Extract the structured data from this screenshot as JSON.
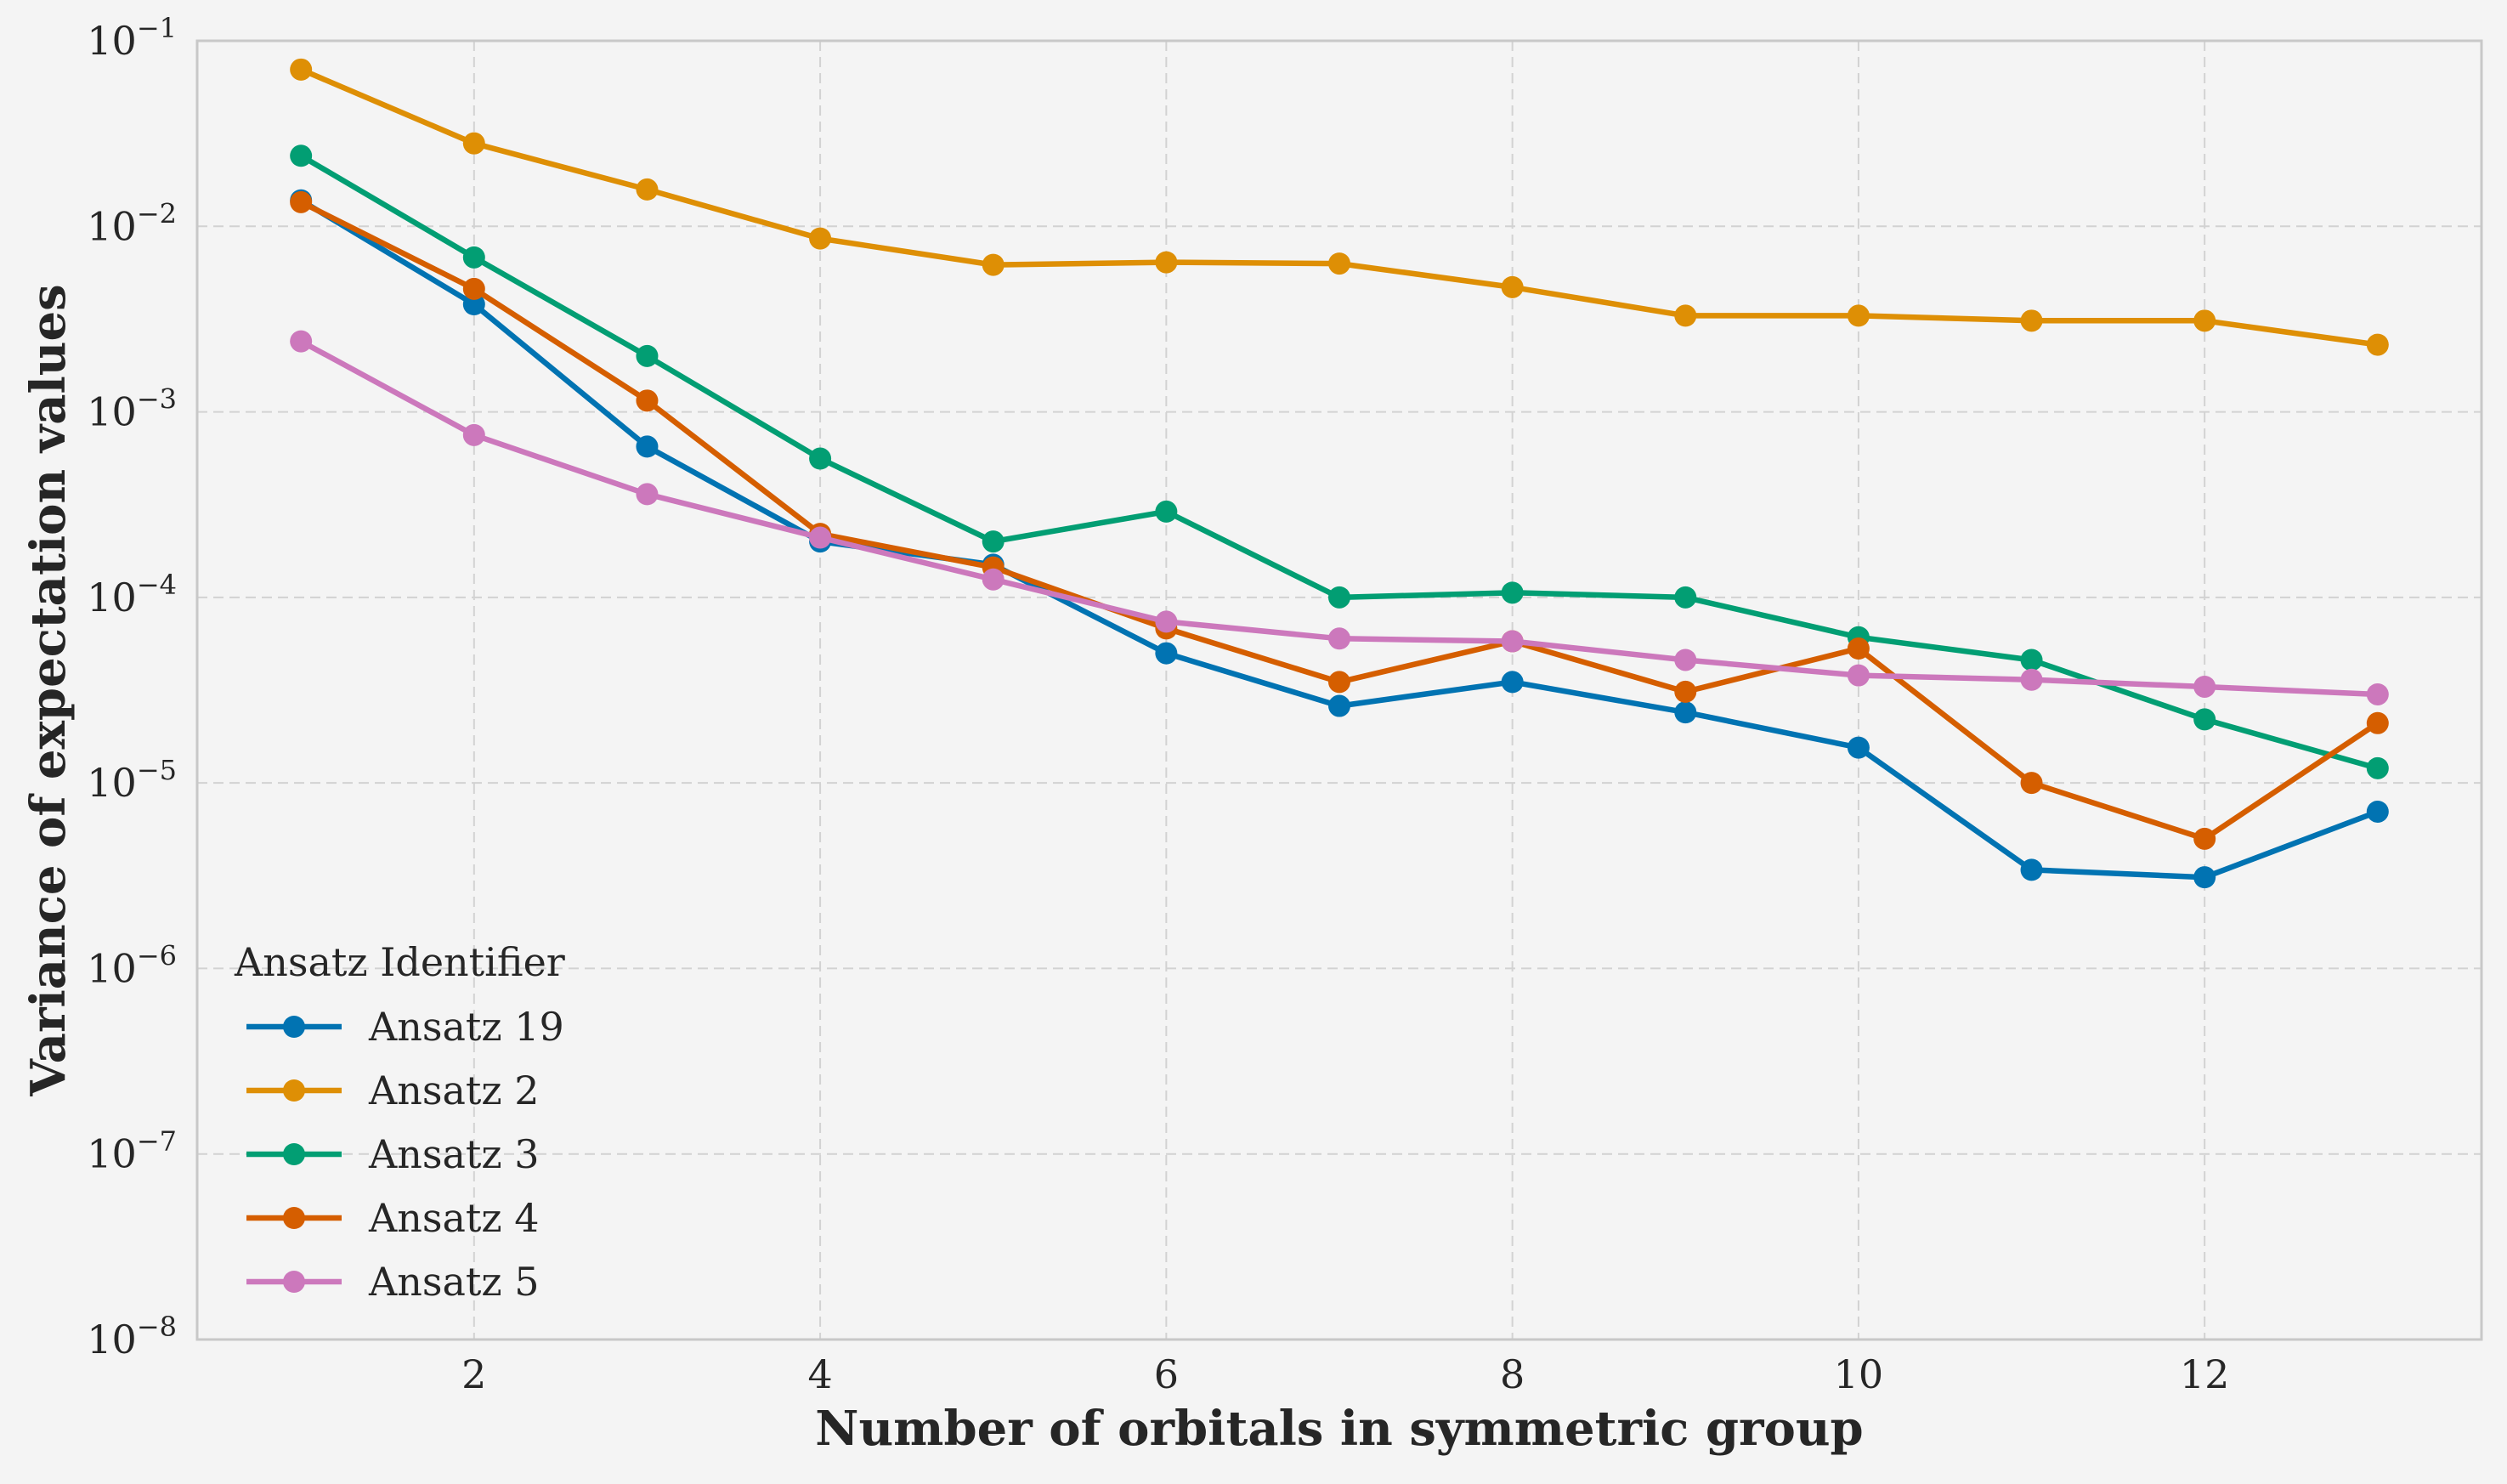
{
  "chart_data": {
    "type": "line",
    "xlabel": "Number of orbitals in symmetric group",
    "ylabel": "Variance of expectation values",
    "yscale": "log",
    "xlim": [
      0.4,
      13.6
    ],
    "ylim": [
      1e-08,
      0.1
    ],
    "x_ticks": [
      2,
      4,
      6,
      8,
      10,
      12
    ],
    "x_tick_labels": [
      "2",
      "4",
      "6",
      "8",
      "10",
      "12"
    ],
    "y_ticks": [
      1e-08,
      1e-07,
      1e-06,
      1e-05,
      0.0001,
      0.001,
      0.01,
      0.1
    ],
    "y_tick_labels": [
      {
        "base": "10",
        "exp": "−8"
      },
      {
        "base": "10",
        "exp": "−7"
      },
      {
        "base": "10",
        "exp": "−6"
      },
      {
        "base": "10",
        "exp": "−5"
      },
      {
        "base": "10",
        "exp": "−4"
      },
      {
        "base": "10",
        "exp": "−3"
      },
      {
        "base": "10",
        "exp": "−2"
      },
      {
        "base": "10",
        "exp": "−1"
      }
    ],
    "grid": true,
    "legend": {
      "title": "Ansatz Identifier",
      "position": "lower-left"
    },
    "x": [
      1,
      2,
      3,
      4,
      5,
      6,
      7,
      8,
      9,
      10,
      11,
      12,
      13
    ],
    "series": [
      {
        "name": "Ansatz 19",
        "color": "#0173b2",
        "values": [
          0.0138,
          0.0038,
          0.00065,
          0.0002,
          0.00015,
          5e-05,
          2.6e-05,
          3.5e-05,
          2.4e-05,
          1.55e-05,
          3.4e-06,
          3.1e-06,
          7e-06
        ]
      },
      {
        "name": "Ansatz 2",
        "color": "#de8f05",
        "values": [
          0.07,
          0.028,
          0.0158,
          0.0086,
          0.0062,
          0.0064,
          0.0063,
          0.0047,
          0.0033,
          0.0033,
          0.0031,
          0.0031,
          0.0023
        ]
      },
      {
        "name": "Ansatz 3",
        "color": "#029e73",
        "values": [
          0.024,
          0.0068,
          0.002,
          0.00056,
          0.0002,
          0.00029,
          0.0001,
          0.000106,
          0.0001,
          6.1e-05,
          4.6e-05,
          2.2e-05,
          1.2e-05
        ]
      },
      {
        "name": "Ansatz 4",
        "color": "#d55e00",
        "values": [
          0.0135,
          0.0046,
          0.00115,
          0.00022,
          0.000145,
          6.8e-05,
          3.5e-05,
          5.8e-05,
          3.1e-05,
          5.3e-05,
          1e-05,
          5e-06,
          2.1e-05
        ]
      },
      {
        "name": "Ansatz 5",
        "color": "#cc78bc",
        "values": [
          0.0024,
          0.00075,
          0.00036,
          0.00021,
          0.000125,
          7.4e-05,
          6e-05,
          5.8e-05,
          4.6e-05,
          3.8e-05,
          3.6e-05,
          3.3e-05,
          3e-05
        ]
      }
    ]
  }
}
